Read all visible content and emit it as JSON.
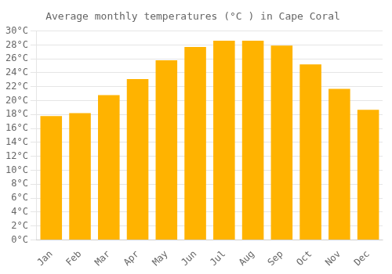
{
  "chart_data": {
    "type": "bar",
    "title": "Average monthly temperatures (°C ) in Cape Coral",
    "categories": [
      "Jan",
      "Feb",
      "Mar",
      "Apr",
      "May",
      "Jun",
      "Jul",
      "Aug",
      "Sep",
      "Oct",
      "Nov",
      "Dec"
    ],
    "values": [
      17.8,
      18.2,
      20.8,
      23.1,
      25.8,
      27.7,
      28.6,
      28.6,
      27.9,
      25.2,
      21.7,
      18.7
    ],
    "color": "#FFB300",
    "ylim": [
      0,
      30
    ],
    "yticks": [
      {
        "value": 0,
        "label": "0°C"
      },
      {
        "value": 2,
        "label": "2°C"
      },
      {
        "value": 4,
        "label": "4°C"
      },
      {
        "value": 6,
        "label": "6°C"
      },
      {
        "value": 8,
        "label": "8°C"
      },
      {
        "value": 10,
        "label": "10°C"
      },
      {
        "value": 12,
        "label": "12°C"
      },
      {
        "value": 14,
        "label": "14°C"
      },
      {
        "value": 16,
        "label": "16°C"
      },
      {
        "value": 18,
        "label": "18°C"
      },
      {
        "value": 20,
        "label": "20°C"
      },
      {
        "value": 22,
        "label": "22°C"
      },
      {
        "value": 24,
        "label": "24°C"
      },
      {
        "value": 26,
        "label": "26°C"
      },
      {
        "value": 28,
        "label": "28°C"
      },
      {
        "value": 30,
        "label": "30°C"
      }
    ],
    "grid": true
  }
}
